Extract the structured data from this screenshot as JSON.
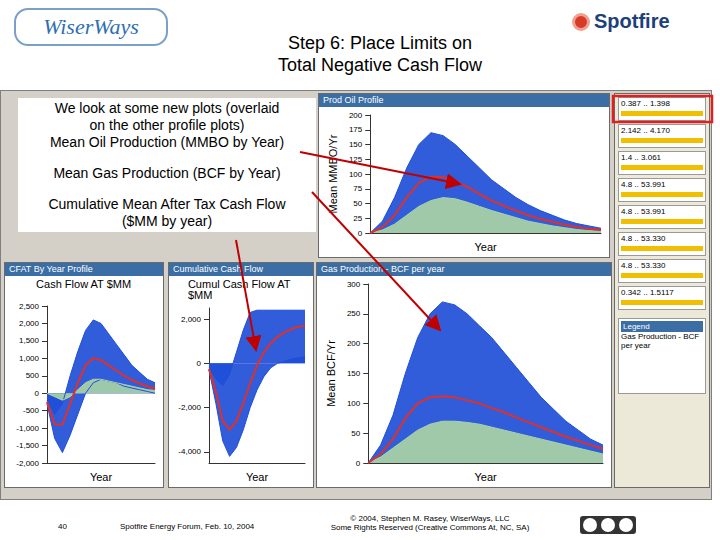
{
  "header": {
    "logo_left": "WiserWays",
    "logo_right": "Spotfire",
    "title": [
      "Step 6: Place Limits on",
      "Total Negative Cash Flow"
    ]
  },
  "callout": {
    "intro": [
      "We look at some new plots (overlaid",
      "on the other profile plots)",
      "Mean Oil Production (MMBO by Year)"
    ],
    "gas": "Mean Gas Production (BCF by Year)",
    "cash": [
      "Cumulative Mean After Tax Cash Flow",
      "($MM by year)"
    ]
  },
  "chart_data": [
    {
      "type": "line",
      "title": "Prod Oil Profile",
      "y_label": "Mean MMBO/Yr",
      "x_label": "Year",
      "categories": [
        null,
        null,
        null,
        null,
        null,
        null,
        null,
        null,
        null,
        null,
        null,
        null,
        null,
        null,
        null,
        null,
        null,
        null,
        null,
        null
      ],
      "tick_labels": "y",
      "grid": false,
      "ylim": [
        0,
        200
      ],
      "yticks": [
        0,
        25,
        50,
        75,
        100,
        125,
        150,
        175,
        200
      ],
      "series": [
        {
          "type": "area",
          "color": "#1f4fd8",
          "values": [
            0,
            20,
            60,
            110,
            150,
            170,
            165,
            150,
            130,
            110,
            90,
            75,
            60,
            48,
            38,
            30,
            22,
            16,
            12,
            8
          ]
        },
        {
          "type": "area",
          "color": "#a9d3a6",
          "values": [
            0,
            5,
            15,
            30,
            45,
            55,
            60,
            58,
            52,
            45,
            38,
            32,
            26,
            20,
            16,
            12,
            9,
            6,
            4,
            3
          ]
        },
        {
          "type": "line",
          "color": "#e0302a",
          "values": [
            0,
            10,
            30,
            60,
            85,
            95,
            95,
            88,
            78,
            66,
            55,
            46,
            38,
            30,
            24,
            19,
            14,
            10,
            7,
            5
          ]
        }
      ]
    },
    {
      "type": "line",
      "title": "Gas Production - BCF per year",
      "y_label": "Mean BCF/Yr",
      "x_label": "Year",
      "categories": [
        null,
        null,
        null,
        null,
        null,
        null,
        null,
        null,
        null,
        null,
        null,
        null,
        null,
        null,
        null,
        null,
        null,
        null,
        null,
        null
      ],
      "tick_labels": "y",
      "grid": false,
      "ylim": [
        0,
        300
      ],
      "yticks": [
        0,
        50,
        100,
        150,
        200,
        250,
        300
      ],
      "series": [
        {
          "type": "area",
          "color": "#1f4fd8",
          "values": [
            0,
            30,
            80,
            150,
            210,
            250,
            270,
            265,
            250,
            230,
            210,
            185,
            160,
            135,
            110,
            90,
            70,
            55,
            40,
            30
          ]
        },
        {
          "type": "area",
          "color": "#a9d3a6",
          "values": [
            0,
            10,
            25,
            40,
            55,
            65,
            70,
            70,
            68,
            65,
            60,
            55,
            50,
            45,
            40,
            35,
            30,
            25,
            20,
            15
          ]
        },
        {
          "type": "line",
          "color": "#e0302a",
          "values": [
            0,
            15,
            40,
            75,
            100,
            110,
            112,
            110,
            105,
            100,
            92,
            85,
            76,
            68,
            60,
            52,
            44,
            37,
            30,
            24
          ]
        }
      ]
    },
    {
      "type": "line",
      "title": "CFAT By Year Profile",
      "y_label": "Cash Flow AT $MM",
      "x_label": "Year",
      "categories": [
        null,
        null,
        null,
        null,
        null,
        null,
        null,
        null,
        null,
        null,
        null,
        null,
        null,
        null,
        null
      ],
      "tick_labels": "y",
      "grid": false,
      "ylim": [
        -2000,
        2500
      ],
      "yticks": [
        -2000,
        -1500,
        -1000,
        -500,
        0,
        500,
        1000,
        1500,
        2000,
        2500
      ],
      "series": [
        {
          "type": "area",
          "color": "#1f4fd8",
          "values": [
            -200,
            -600,
            -300,
            500,
            1200,
            1800,
            2100,
            2000,
            1700,
            1400,
            1100,
            800,
            600,
            400,
            300
          ]
        },
        {
          "type": "area",
          "color": "#1f4fd8",
          "values": [
            -300,
            -1300,
            -1700,
            -1200,
            -600,
            0,
            300,
            400,
            350,
            300,
            200,
            150,
            100,
            50,
            0
          ]
        },
        {
          "type": "area",
          "color": "#a9d3a6",
          "values": [
            0,
            -100,
            -200,
            -100,
            100,
            300,
            400,
            400,
            350,
            300,
            250,
            200,
            150,
            100,
            80
          ]
        },
        {
          "type": "line",
          "color": "#e0302a",
          "values": [
            -250,
            -900,
            -900,
            -300,
            300,
            800,
            1000,
            950,
            800,
            650,
            500,
            380,
            280,
            200,
            130
          ]
        }
      ]
    },
    {
      "type": "line",
      "title": "Cumulative Cash Flow",
      "y_label": "Cumul Cash Flow AT $MM",
      "x_label": "Year",
      "categories": [
        null,
        null,
        null,
        null,
        null,
        null,
        null,
        null,
        null,
        null,
        null,
        null,
        null,
        null,
        null
      ],
      "tick_labels": "y",
      "grid": false,
      "ylim": [
        -4500,
        2500
      ],
      "yticks": [
        -4000,
        -2000,
        0,
        2000
      ],
      "series": [
        {
          "type": "area",
          "color": "#1f4fd8",
          "values": [
            -200,
            -700,
            -1000,
            -500,
            500,
            1500,
            2300,
            2400,
            2400,
            2400,
            2400,
            2400,
            2400,
            2400,
            2400
          ]
        },
        {
          "type": "area",
          "color": "#1f4fd8",
          "values": [
            -300,
            -1800,
            -3500,
            -4200,
            -3800,
            -3000,
            -2000,
            -1200,
            -600,
            -200,
            0,
            100,
            200,
            250,
            300
          ]
        },
        {
          "type": "line",
          "color": "#e0302a",
          "values": [
            -250,
            -1300,
            -2600,
            -3000,
            -2600,
            -1800,
            -900,
            -100,
            500,
            900,
            1200,
            1400,
            1550,
            1650,
            1700
          ]
        }
      ]
    }
  ],
  "panel": {
    "sliders": [
      "0.387 .. 1.398",
      "2.142 .. 4.170",
      "1.4 .. 3.061",
      "4.8 .. 53.991",
      "4.8 .. 53.991",
      "4.8 .. 53.330",
      "4.8 .. 53.330",
      "0.342 .. 1.5117"
    ],
    "legend_title": "Legend",
    "legend_item": "Gas Production - BCF per year"
  },
  "footer": {
    "page": "40",
    "event": "Spotfire Energy Forum, Feb. 10, 2004",
    "copyright": [
      "© 2004, Stephen M. Rasey, WiserWays, LLC",
      "Some Rights Reserved (Creative Commons At, NC, SA)"
    ]
  }
}
